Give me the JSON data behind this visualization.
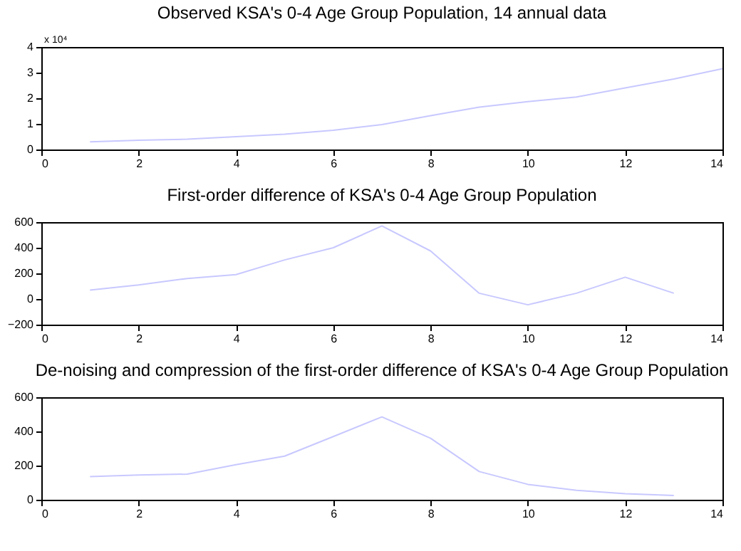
{
  "chart_data": [
    {
      "type": "line",
      "title": "Observed KSA's 0-4 Age Group Population, 14 annual data",
      "annotations": [
        "x 10⁴"
      ],
      "x": [
        1,
        2,
        3,
        4,
        5,
        6,
        7,
        8,
        9,
        10,
        11,
        12,
        13,
        14
      ],
      "series": [
        {
          "color": "#c8c8ff",
          "values": [
            0.3,
            0.36,
            0.4,
            0.5,
            0.6,
            0.75,
            0.97,
            1.32,
            1.65,
            1.87,
            2.05,
            2.4,
            2.75,
            3.15
          ]
        }
      ],
      "xlim": [
        0,
        14
      ],
      "xticks": [
        0,
        2,
        4,
        6,
        8,
        10,
        12,
        14
      ],
      "ylim": [
        0,
        4
      ],
      "yticks": [
        0,
        1,
        2,
        3,
        4
      ],
      "grid": false
    },
    {
      "type": "line",
      "title": "First-order difference of KSA's 0-4 Age Group Population",
      "x": [
        1,
        2,
        3,
        4,
        5,
        6,
        7,
        8,
        9,
        10,
        11,
        12,
        13
      ],
      "series": [
        {
          "color": "#c8c8ff",
          "values": [
            70,
            110,
            160,
            190,
            305,
            400,
            570,
            375,
            45,
            -45,
            45,
            170,
            45
          ]
        }
      ],
      "xlim": [
        0,
        14
      ],
      "xticks": [
        0,
        2,
        4,
        6,
        8,
        10,
        12,
        14
      ],
      "ylim": [
        -200,
        600
      ],
      "yticks": [
        -200,
        0,
        200,
        400,
        600
      ],
      "grid": false
    },
    {
      "type": "line",
      "title": "De-noising and compression of the first-order difference of KSA's 0-4 Age Group Population",
      "x": [
        1,
        2,
        3,
        4,
        5,
        6,
        7,
        8,
        9,
        10,
        11,
        12,
        13
      ],
      "series": [
        {
          "color": "#c8c8ff",
          "values": [
            135,
            145,
            150,
            205,
            255,
            370,
            485,
            360,
            165,
            90,
            55,
            35,
            25
          ]
        }
      ],
      "xlim": [
        0,
        14
      ],
      "xticks": [
        0,
        2,
        4,
        6,
        8,
        10,
        12,
        14
      ],
      "ylim": [
        0,
        600
      ],
      "yticks": [
        0,
        200,
        400,
        600
      ],
      "grid": false
    }
  ]
}
